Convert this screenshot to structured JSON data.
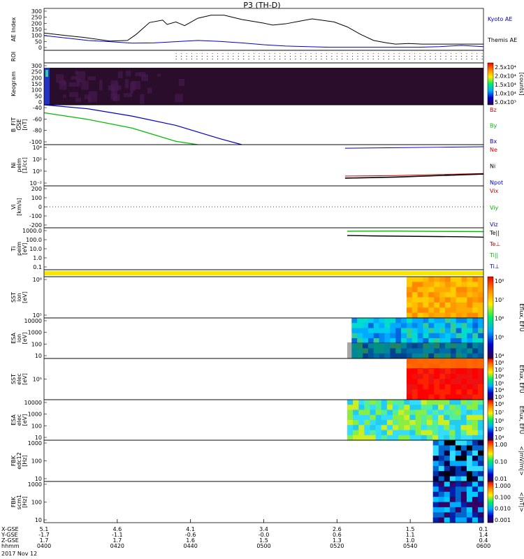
{
  "title": "P3 (TH-D)",
  "date": "2017 Nov 12",
  "colors": {
    "kyoto": "#0000cc",
    "themis": "#000000",
    "bz": "#cc0000",
    "by": "#00bb00",
    "bx": "#0000cc",
    "ne": "#cc0000",
    "ni": "#000000",
    "npot": "#0000cc",
    "vx": "#cc0000",
    "vy": "#00bb00",
    "vz": "#0000cc",
    "tpar": "#000000",
    "tperp": "#cc0000",
    "ti": "#00bb00"
  },
  "chart_data": [
    {
      "type": "line",
      "panel": "ae",
      "ylabel": "AE Index",
      "yticks": [
        "300",
        "250",
        "200",
        "150",
        "100",
        "50",
        "0"
      ],
      "ylim": [
        -20,
        320
      ],
      "legend": [
        "Kyoto AE",
        "Themis AE"
      ],
      "series": [
        {
          "name": "Themis AE",
          "x": [
            0,
            0.05,
            0.09,
            0.15,
            0.19,
            0.21,
            0.24,
            0.27,
            0.28,
            0.3,
            0.32,
            0.35,
            0.38,
            0.41,
            0.45,
            0.5,
            0.52,
            0.55,
            0.58,
            0.61,
            0.63,
            0.66,
            0.69,
            0.72,
            0.75,
            0.78,
            0.8,
            0.83,
            0.86,
            0.9,
            0.95,
            1.0
          ],
          "y": [
            120,
            100,
            85,
            55,
            60,
            110,
            205,
            225,
            190,
            210,
            180,
            240,
            265,
            265,
            230,
            200,
            185,
            195,
            215,
            235,
            225,
            210,
            170,
            110,
            60,
            40,
            30,
            35,
            30,
            30,
            30,
            30
          ]
        },
        {
          "name": "Kyoto AE",
          "x": [
            0,
            0.05,
            0.1,
            0.15,
            0.2,
            0.25,
            0.3,
            0.35,
            0.4,
            0.45,
            0.5,
            0.55,
            0.6,
            0.65,
            0.7,
            0.75,
            0.8,
            0.85,
            0.9,
            0.95,
            1.0
          ],
          "y": [
            100,
            80,
            60,
            50,
            38,
            40,
            50,
            60,
            52,
            40,
            25,
            15,
            10,
            5,
            5,
            5,
            5,
            5,
            10,
            20,
            10
          ]
        }
      ]
    },
    {
      "type": "table",
      "panel": "roi",
      "ylabel": "ROI"
    },
    {
      "type": "heatmap",
      "panel": "keogram",
      "ylabel": "Keogram",
      "yticks": [
        "300",
        "250",
        "200",
        "150",
        "100",
        "50",
        "0"
      ],
      "colorbar": {
        "ticks": [
          "2.5x10⁴",
          "2.0x10⁴",
          "1.5x10⁴",
          "1.0x10⁴",
          "5.0x10³"
        ],
        "label": "[counts]"
      }
    },
    {
      "type": "line",
      "panel": "bfield",
      "ylabel": "B_FIT GSE [nT]",
      "yticks": [
        "-40",
        "-60",
        "-80",
        "-100"
      ],
      "ylim": [
        -100,
        -40
      ],
      "legend": [
        "Bz",
        "By",
        "Bx"
      ],
      "series": [
        {
          "name": "Bx",
          "x": [
            0,
            0.1,
            0.2,
            0.3,
            0.4,
            0.45
          ],
          "y": [
            -40,
            -46,
            -57,
            -71,
            -91,
            -100
          ]
        },
        {
          "name": "By",
          "x": [
            0,
            0.1,
            0.2,
            0.3,
            0.35
          ],
          "y": [
            -52,
            -62,
            -75,
            -95,
            -100
          ]
        }
      ]
    },
    {
      "type": "line",
      "panel": "density",
      "ylabel": "Ni peim [1/cc]",
      "yticks": [
        "10⁴",
        "10²",
        "10⁰",
        "10⁻²"
      ],
      "ylim": [
        -3,
        5
      ],
      "legend": [
        "Ne",
        "Ni",
        "Npot"
      ],
      "series": [
        {
          "name": "Npot",
          "x": [
            0.685,
            0.8,
            0.9,
            1.0
          ],
          "y": [
            4.3,
            4.4,
            4.5,
            4.6
          ]
        },
        {
          "name": "Ne",
          "x": [
            0.685,
            0.8,
            0.9,
            1.0
          ],
          "y": [
            -1.1,
            -1.0,
            -0.8,
            -0.6
          ]
        },
        {
          "name": "Ni",
          "x": [
            0.685,
            0.8,
            0.9,
            1.0
          ],
          "y": [
            -1.5,
            -1.3,
            -1.0,
            -0.7
          ]
        }
      ]
    },
    {
      "type": "line",
      "panel": "velocity",
      "ylabel": "Vi [km/s]",
      "yticks": [
        "200",
        "100",
        "0",
        "-100",
        "-200"
      ],
      "ylim": [
        -240,
        240
      ],
      "legend": [
        "Vix",
        "Viy",
        "Viz"
      ],
      "series": []
    },
    {
      "type": "line",
      "panel": "temperature",
      "ylabel": "Ti peim [eV]",
      "yticks": [
        "1000.0",
        "100.0",
        "10.0",
        "1.0",
        "0.1"
      ],
      "ylim": [
        -1.4,
        3.5
      ],
      "legend": [
        "Te||",
        "Te⊥",
        "Ti||",
        "Ti⊥"
      ],
      "series": [
        {
          "name": "Ti||",
          "x": [
            0.69,
            0.8,
            0.9,
            1.0
          ],
          "y": [
            3.1,
            3.12,
            3.08,
            3.05
          ]
        },
        {
          "name": "Te||",
          "x": [
            0.69,
            0.75,
            0.85,
            0.95,
            1.0
          ],
          "y": [
            2.6,
            2.55,
            2.5,
            2.45,
            2.4
          ]
        }
      ]
    },
    {
      "type": "heatmap",
      "panel": "sst_ion",
      "ylabel": "SST ion [eV]",
      "yticks": [
        "10⁶",
        "10⁵"
      ],
      "start": 0.825,
      "colorbar": {
        "ticks": [
          "10⁸",
          "10⁷",
          "10⁶",
          "10⁵",
          "10⁴"
        ],
        "label": "Eflux, EFU"
      }
    },
    {
      "type": "heatmap",
      "panel": "esa_ion",
      "ylabel": "ESA ion [eV]",
      "yticks": [
        "10000",
        "1000",
        "100",
        "10"
      ],
      "start": 0.7
    },
    {
      "type": "heatmap",
      "panel": "sst_elec",
      "ylabel": "SST elec [eV]",
      "yticks": [
        "10⁵"
      ],
      "start": 0.825,
      "colorbar": {
        "ticks": [
          "10⁸",
          "10⁷",
          "10⁶",
          "10⁵",
          "10⁴",
          "10³"
        ],
        "label": "Eflux, EFU"
      }
    },
    {
      "type": "heatmap",
      "panel": "esa_elec",
      "ylabel": "ESA elec [eV]",
      "yticks": [
        "10000",
        "1000",
        "100",
        "10"
      ],
      "start": 0.69,
      "colorbar": {
        "ticks": [
          "10⁸",
          "10⁷",
          "10⁶",
          "10⁵",
          "10⁴"
        ],
        "label": "Eflux, EFU"
      }
    },
    {
      "type": "heatmap",
      "panel": "fbk_e",
      "ylabel": "FBK edc12 [Hz]",
      "yticks": [
        "1000",
        "100",
        "10"
      ],
      "start": 0.885,
      "colorbar": {
        "ticks": [
          "1.00",
          "0.10",
          "0.01"
        ],
        "label": "<|mV/m|>"
      }
    },
    {
      "type": "heatmap",
      "panel": "fbk_b",
      "ylabel": "FBK scm1 [Hz]",
      "yticks": [
        "1000",
        "100",
        "10"
      ],
      "start": 0.885,
      "colorbar": {
        "ticks": [
          "1.000",
          "0.100",
          "0.010",
          "0.001"
        ],
        "label": "<|nT|>"
      }
    }
  ],
  "xaxis": {
    "row_labels": [
      "X-GSE",
      "Y-GSE",
      "Z-GSE",
      "hhmm"
    ],
    "ticks": [
      {
        "x": 0.0,
        "vals": [
          "5.1",
          "-1.7",
          "1.7",
          "0400"
        ]
      },
      {
        "x": 0.2,
        "vals": [
          "4.6",
          "-1.1",
          "1.7",
          "0420"
        ]
      },
      {
        "x": 0.4,
        "vals": [
          "4.1",
          "-0.6",
          "1.6",
          "0440"
        ]
      },
      {
        "x": 0.6,
        "vals": [
          "3.4",
          "-0.0",
          "1.5",
          "0500"
        ]
      },
      {
        "x": 0.8,
        "vals": [
          "2.6",
          "0.6",
          "1.3",
          "0520"
        ]
      },
      {
        "x": 1.0,
        "vals": [
          "1.5",
          "1.1",
          "1.0",
          "0540"
        ]
      },
      {
        "x": 1.2,
        "vals": [
          "0.1",
          "1.4",
          "0.4",
          "0600"
        ]
      }
    ]
  }
}
